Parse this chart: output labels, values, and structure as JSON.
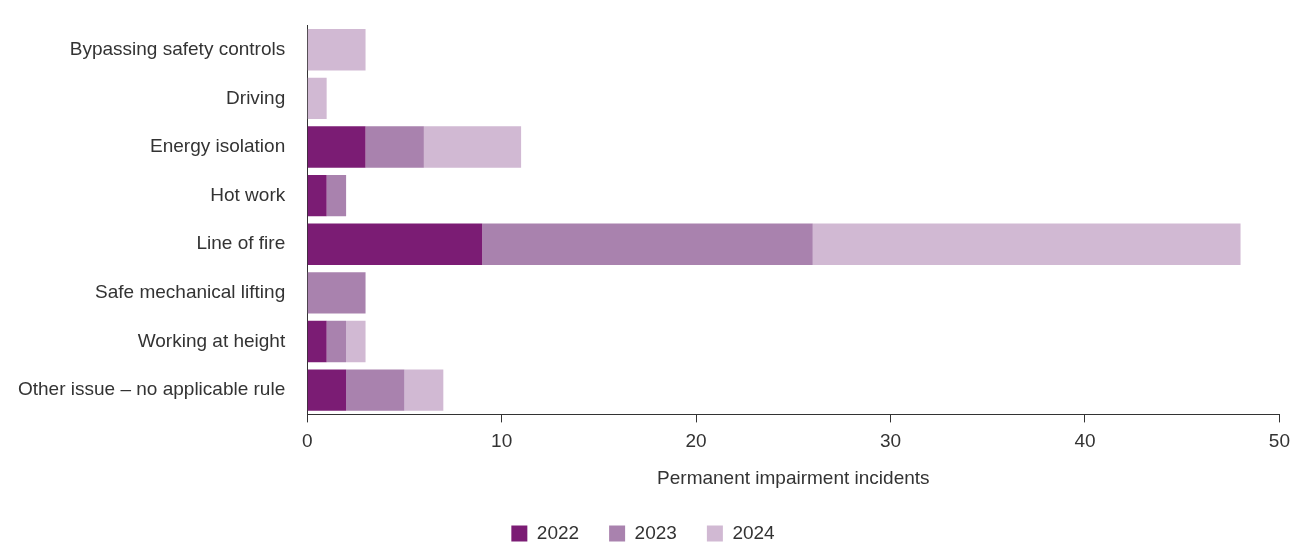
{
  "chart_data": {
    "type": "bar",
    "orientation": "horizontal",
    "stacked": true,
    "xlabel": "Permanent impairment incidents",
    "categories": [
      "Bypassing safety controls",
      "Driving",
      "Energy isolation",
      "Hot work",
      "Line of fire",
      "Safe mechanical lifting",
      "Working at height",
      "Other issue – no applicable rule"
    ],
    "series": [
      {
        "name": "2022",
        "color": "#7b1c74",
        "values": [
          0,
          0,
          3,
          1,
          9,
          0,
          1,
          2
        ]
      },
      {
        "name": "2023",
        "color": "#a982ae",
        "values": [
          0,
          0,
          3,
          1,
          17,
          3,
          1,
          3
        ]
      },
      {
        "name": "2024",
        "color": "#d1b9d3",
        "values": [
          3,
          1,
          5,
          0,
          22,
          0,
          1,
          2
        ]
      }
    ],
    "xlim": [
      0,
      50
    ],
    "xticks": [
      0,
      10,
      20,
      30,
      40,
      50
    ],
    "grid": false,
    "legend": "bottom"
  }
}
